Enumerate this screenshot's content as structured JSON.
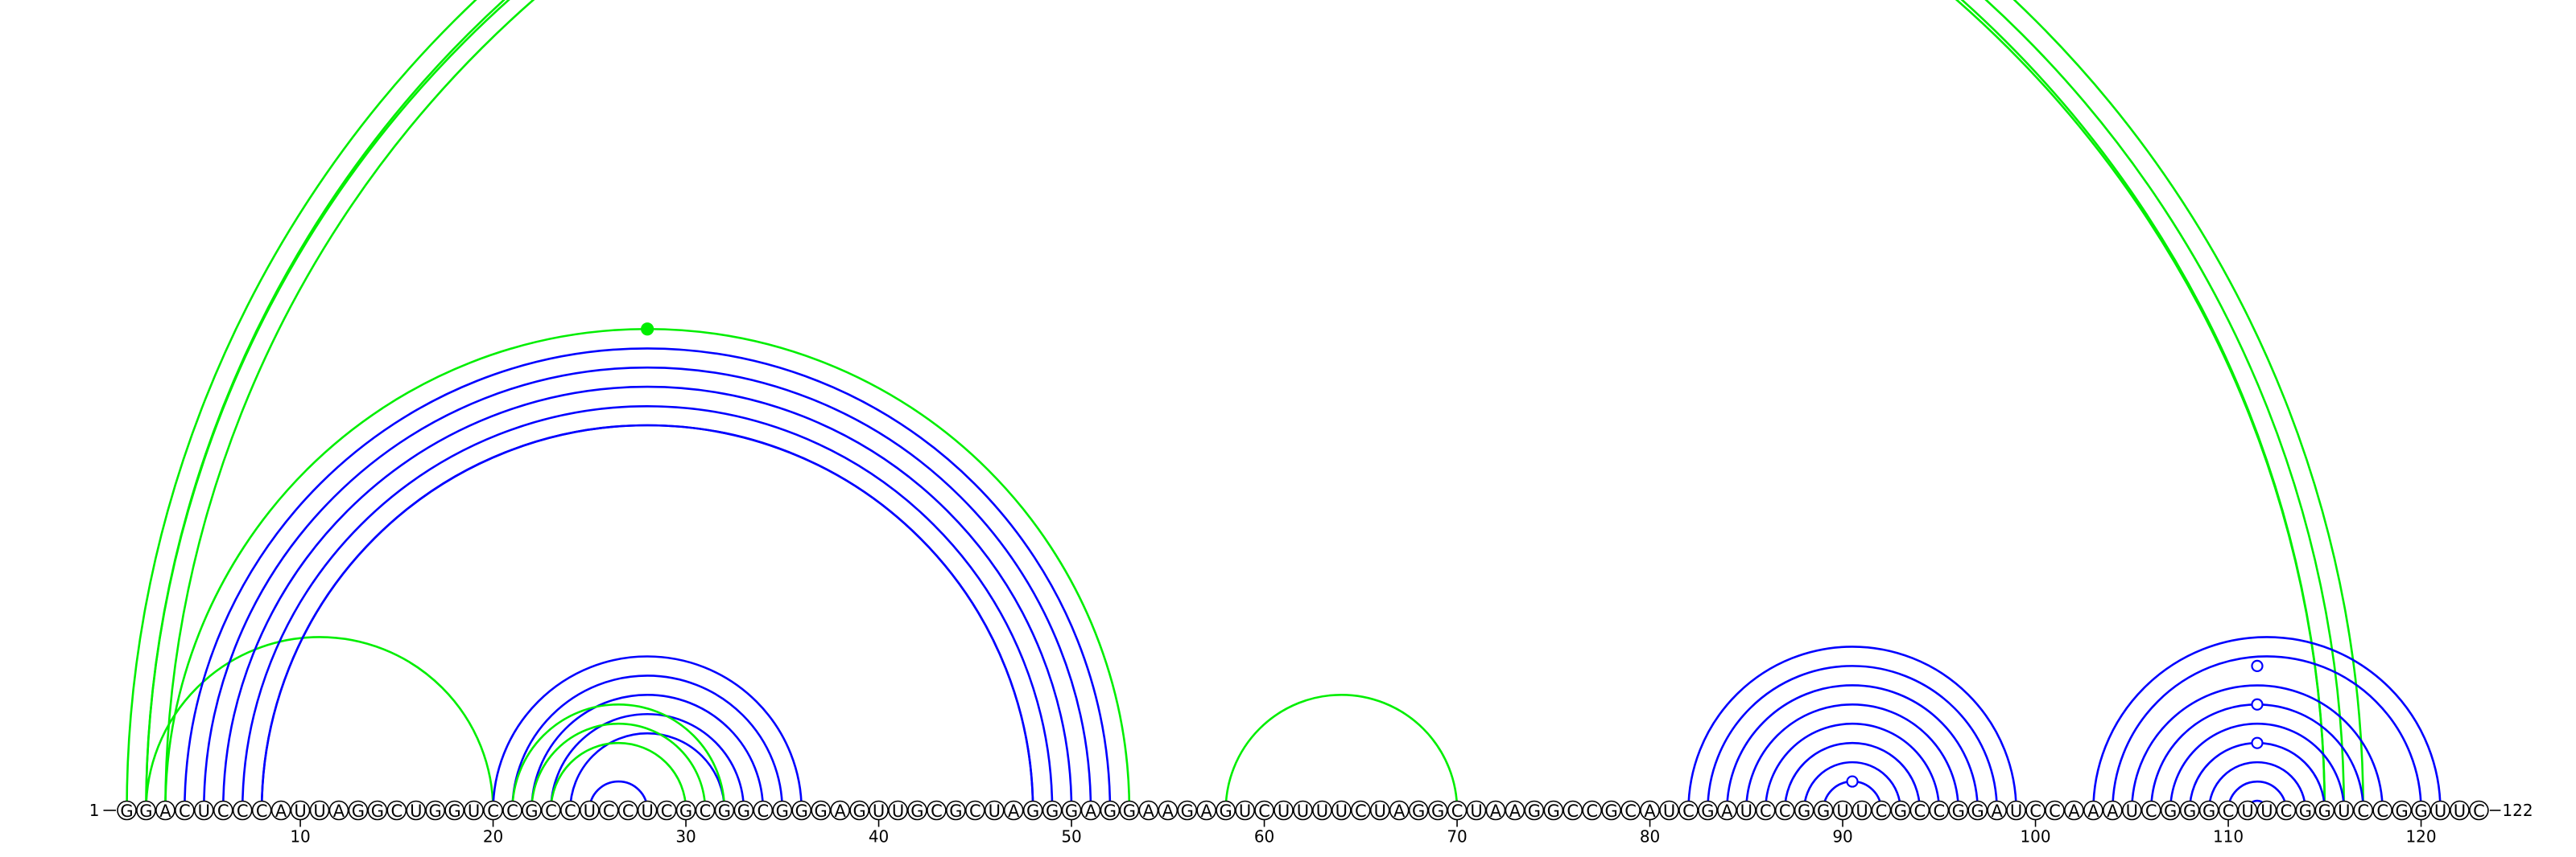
{
  "sequence": "GGACUCCCAUUAGGCUGGUCCGCCUCCUCGCGGCGGGAGUUGCGCUAGGGAGGAAGAGUCUUUUCUAGGCUAAGGCCGCAUCGAUCCGGUUCGCCGGAUCCAAAUCGGGCUUCGGUCCGGUUC",
  "start_label": "1",
  "end_label": "122",
  "ticks": [
    10,
    20,
    30,
    40,
    50,
    60,
    70,
    80,
    90,
    100,
    110,
    120
  ],
  "colors": {
    "paired": "#0000ff",
    "alternate": "#00ee00",
    "outline": "#000000"
  },
  "helices": [
    {
      "i": 1,
      "j": 117,
      "n": 3,
      "color": "alternate"
    },
    {
      "i": 2,
      "j": 115,
      "n": 1,
      "color": "alternate"
    },
    {
      "i": 2,
      "j": 20,
      "n": 1,
      "color": "alternate"
    },
    {
      "i": 3,
      "j": 53,
      "n": 1,
      "color": "alternate"
    },
    {
      "i": 4,
      "j": 52,
      "n": 5,
      "color": "paired"
    },
    {
      "i": 8,
      "j": 48,
      "n": 1,
      "color": "paired"
    },
    {
      "i": 20,
      "j": 36,
      "n": 5,
      "color": "paired"
    },
    {
      "i": 21,
      "j": 32,
      "n": 1,
      "color": "alternate"
    },
    {
      "i": 22,
      "j": 31,
      "n": 1,
      "color": "alternate"
    },
    {
      "i": 23,
      "j": 30,
      "n": 1,
      "color": "alternate"
    },
    {
      "i": 25,
      "j": 28,
      "n": 1,
      "color": "paired"
    },
    {
      "i": 58,
      "j": 70,
      "n": 1,
      "color": "alternate"
    },
    {
      "i": 82,
      "j": 99,
      "n": 7,
      "color": "paired"
    },
    {
      "i": 89,
      "j": 92,
      "n": 1,
      "color": "paired"
    },
    {
      "i": 103,
      "j": 121,
      "n": 2,
      "color": "paired"
    },
    {
      "i": 105,
      "j": 118,
      "n": 7,
      "color": "paired"
    }
  ],
  "markers": [
    {
      "pos": 28,
      "height": 0.0,
      "arc_i": 3,
      "arc_j": 53,
      "style": "filled",
      "color": "alternate"
    },
    {
      "pos": 90.5,
      "arc_i": 89,
      "arc_j": 92,
      "style": "open",
      "color": "paired"
    },
    {
      "pos": 111.5,
      "arc_i": 108,
      "arc_j": 115,
      "style": "open",
      "color": "paired"
    },
    {
      "pos": 111.5,
      "arc_i": 106,
      "arc_j": 117,
      "style": "open",
      "color": "paired"
    },
    {
      "pos": 111.5,
      "arc_i": 104,
      "arc_j": 119,
      "style": "open",
      "color": "paired"
    }
  ]
}
